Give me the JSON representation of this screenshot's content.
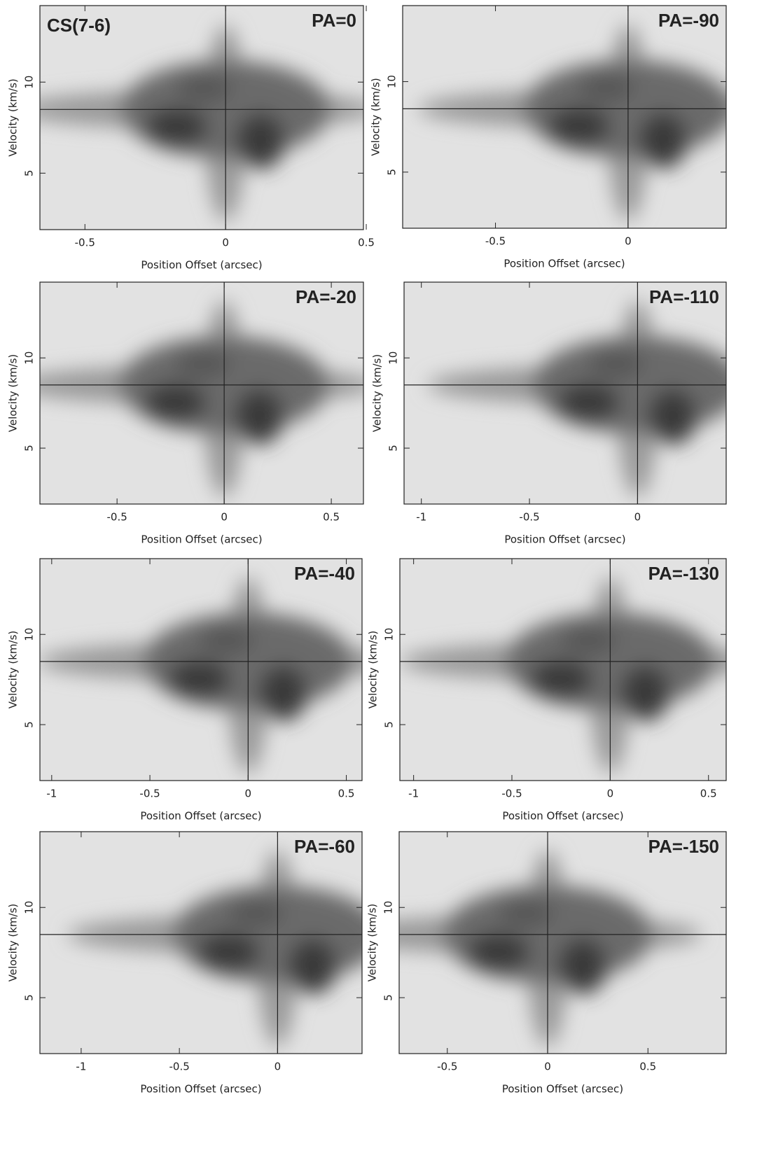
{
  "chart_data": [
    {
      "type": "contour",
      "title": "PA=0",
      "annotation": "CS(7-6)",
      "xlabel": "Position Offset (arcsec)",
      "ylabel": "Velocity (km/s)",
      "xlim": [
        -0.66,
        0.49
      ],
      "ylim": [
        1.9,
        14.2
      ],
      "xticks": [
        -0.5,
        0,
        0.5
      ],
      "yticks": [
        5,
        10
      ],
      "vline": 0,
      "hline": 8.5
    },
    {
      "type": "contour",
      "title": "PA=-90",
      "xlabel": "Position Offset (arcsec)",
      "ylabel": "Velocity (km/s)",
      "xlim": [
        -0.85,
        0.37
      ],
      "ylim": [
        1.9,
        14.2
      ],
      "xticks": [
        -0.5,
        0
      ],
      "yticks": [
        5,
        10
      ],
      "vline": 0,
      "hline": 8.5
    },
    {
      "type": "contour",
      "title": "PA=-20",
      "xlabel": "Position Offset (arcsec)",
      "ylabel": "Velocity (km/s)",
      "xlim": [
        -0.86,
        0.65
      ],
      "ylim": [
        1.9,
        14.2
      ],
      "xticks": [
        -0.5,
        0,
        0.5
      ],
      "yticks": [
        5,
        10
      ],
      "vline": 0,
      "hline": 8.5
    },
    {
      "type": "contour",
      "title": "PA=-110",
      "xlabel": "Position Offset (arcsec)",
      "ylabel": "Velocity (km/s)",
      "xlim": [
        -1.08,
        0.41
      ],
      "ylim": [
        1.9,
        14.2
      ],
      "xticks": [
        -1,
        -0.5,
        0
      ],
      "yticks": [
        5,
        10
      ],
      "vline": 0,
      "hline": 8.5
    },
    {
      "type": "contour",
      "title": "PA=-40",
      "xlabel": "Position Offset (arcsec)",
      "ylabel": "Velocity (km/s)",
      "xlim": [
        -1.06,
        0.58
      ],
      "ylim": [
        1.9,
        14.2
      ],
      "xticks": [
        -1,
        -0.5,
        0,
        0.5
      ],
      "yticks": [
        5,
        10
      ],
      "vline": 0,
      "hline": 8.5
    },
    {
      "type": "contour",
      "title": "PA=-130",
      "xlabel": "Position Offset (arcsec)",
      "ylabel": "Velocity (km/s)",
      "xlim": [
        -1.07,
        0.59
      ],
      "ylim": [
        1.9,
        14.2
      ],
      "xticks": [
        -1,
        -0.5,
        0,
        0.5
      ],
      "yticks": [
        5,
        10
      ],
      "vline": 0,
      "hline": 8.5
    },
    {
      "type": "contour",
      "title": "PA=-60",
      "xlabel": "Position Offset (arcsec)",
      "ylabel": "Velocity (km/s)",
      "xlim": [
        -1.21,
        0.43
      ],
      "ylim": [
        1.9,
        14.2
      ],
      "xticks": [
        -1,
        -0.5,
        0
      ],
      "yticks": [
        5,
        10
      ],
      "vline": 0,
      "hline": 8.5
    },
    {
      "type": "contour",
      "title": "PA=-150",
      "xlabel": "Position Offset (arcsec)",
      "ylabel": "Velocity (km/s)",
      "xlim": [
        -0.74,
        0.89
      ],
      "ylim": [
        1.9,
        14.2
      ],
      "xticks": [
        -0.5,
        0,
        0.5
      ],
      "yticks": [
        5,
        10
      ],
      "vline": 0,
      "hline": 8.5
    }
  ]
}
